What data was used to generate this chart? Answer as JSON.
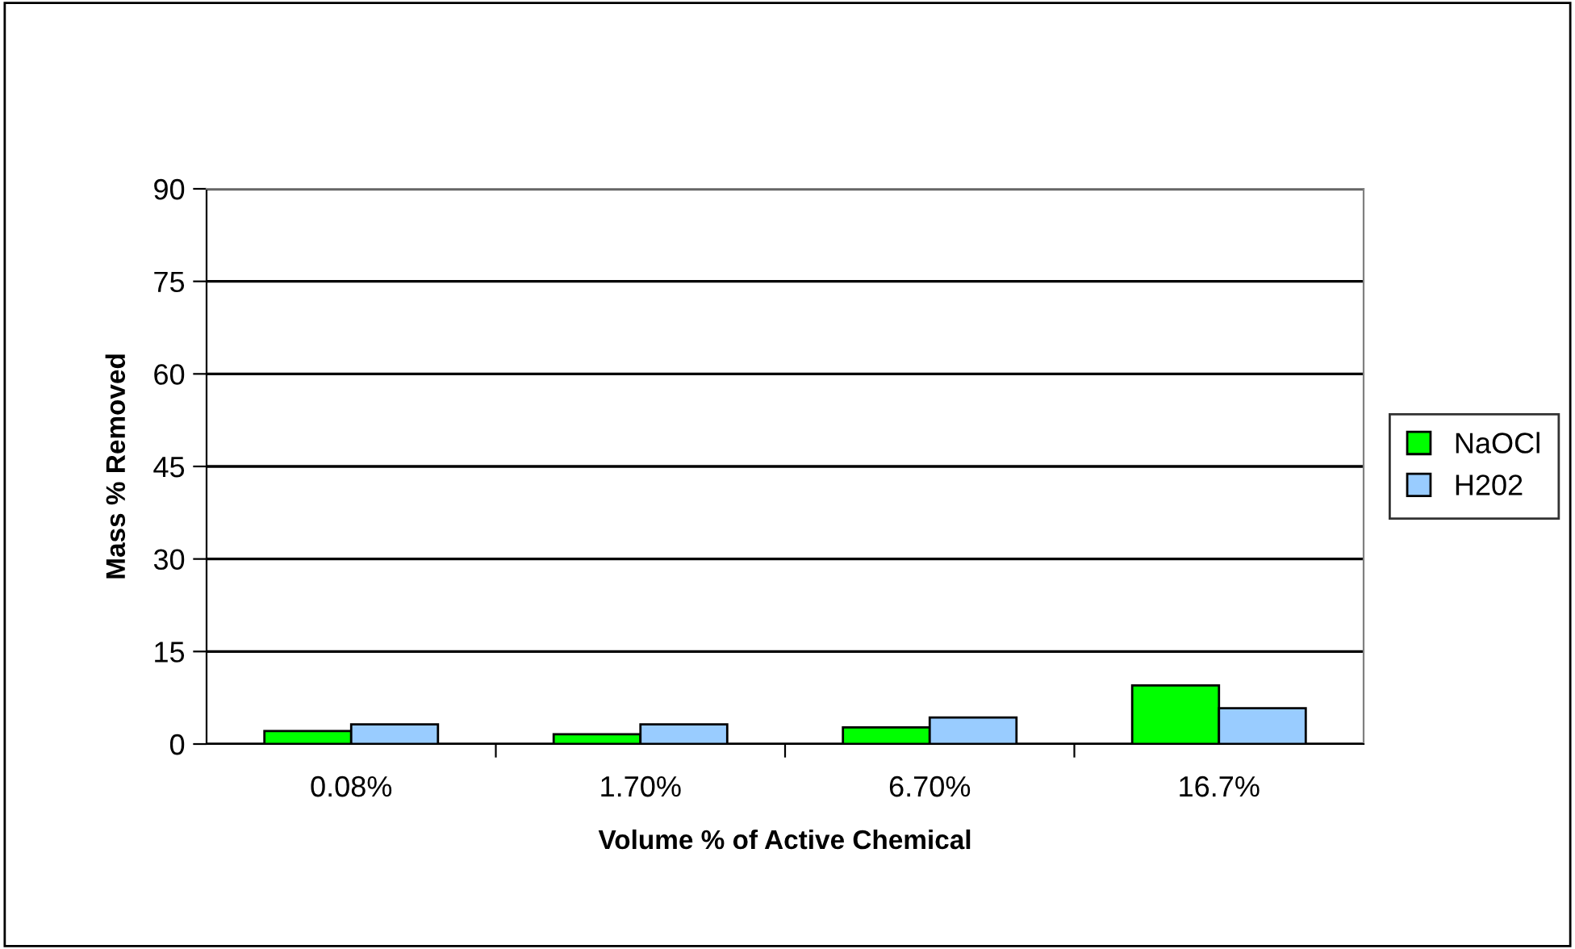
{
  "chart_data": {
    "type": "bar",
    "xlabel": "Volume % of Active Chemical",
    "ylabel": "Mass % Removed",
    "categories": [
      "0.08%",
      "1.70%",
      "6.70%",
      "16.7%"
    ],
    "series": [
      {
        "name": "NaOCl",
        "color": "#00ff00",
        "values": [
          2.1,
          1.6,
          2.7,
          9.5
        ]
      },
      {
        "name": "H202",
        "color": "#99ccff",
        "values": [
          3.2,
          3.2,
          4.3,
          5.8
        ]
      }
    ],
    "ylim": [
      0,
      90
    ],
    "yticks": [
      0,
      15,
      30,
      45,
      60,
      75,
      90
    ],
    "grid": "y",
    "legend": "right"
  }
}
